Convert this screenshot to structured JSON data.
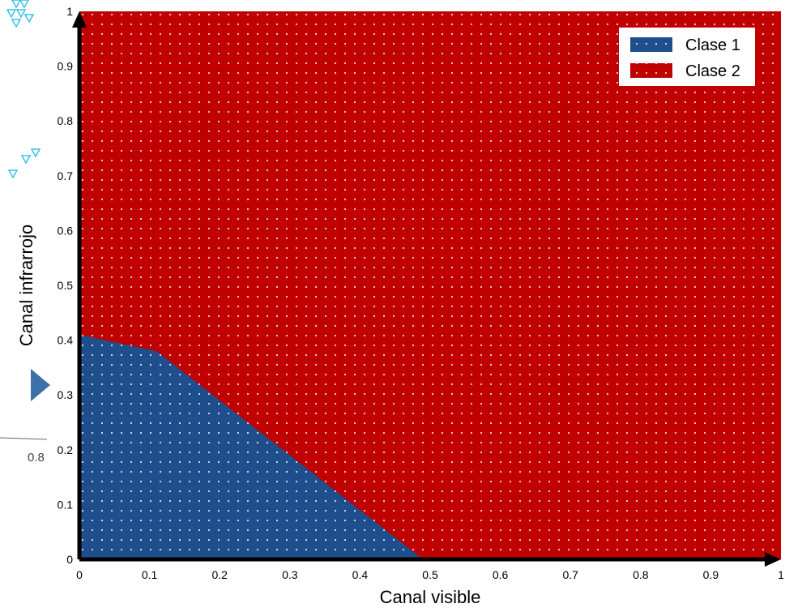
{
  "chart_data": {
    "type": "area",
    "xlabel": "Canal visible",
    "ylabel": "Canal infrarrojo",
    "xlim": [
      0,
      1
    ],
    "ylim": [
      0,
      1
    ],
    "x_ticks": [
      "0",
      "0.1",
      "0.2",
      "0.3",
      "0.4",
      "0.5",
      "0.6",
      "0.7",
      "0.8",
      "0.9",
      "1"
    ],
    "y_ticks": [
      "0",
      "0.1",
      "0.2",
      "0.3",
      "0.4",
      "0.5",
      "0.6",
      "0.7",
      "0.8",
      "0.9",
      "1"
    ],
    "regions": [
      {
        "name": "Clase 1",
        "color": "#1f4e8c",
        "boundary": [
          [
            0,
            0.41
          ],
          [
            0.11,
            0.38
          ],
          [
            0.49,
            0.0
          ]
        ]
      },
      {
        "name": "Clase 2",
        "color": "#c00000"
      }
    ],
    "legend": {
      "position": "top-right",
      "entries": [
        {
          "label": "Clase 1",
          "color": "#1f4e8c"
        },
        {
          "label": "Clase 2",
          "color": "#c00000"
        }
      ]
    },
    "grid": false
  },
  "background_fragment": {
    "tick_label": "0.8",
    "marker_color": "#33c3e6",
    "arrow_color": "#3d6fa8"
  }
}
